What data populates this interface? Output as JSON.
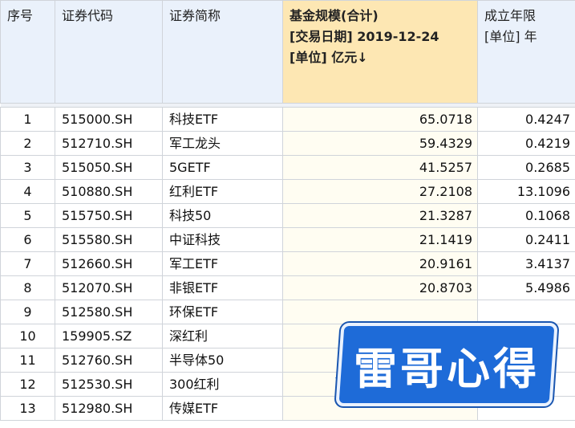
{
  "headers": {
    "idx": "序号",
    "code": "证券代码",
    "name": "证券简称",
    "fund_scale": [
      "基金规模(合计)",
      "[交易日期] 2019-12-24",
      "[单位] 亿元↓"
    ],
    "years": [
      "成立年限",
      "[单位] 年"
    ]
  },
  "rows": [
    {
      "idx": "1",
      "code": "515000.SH",
      "name": "科技ETF",
      "scale": "65.0718",
      "years": "0.4247"
    },
    {
      "idx": "2",
      "code": "512710.SH",
      "name": "军工龙头",
      "scale": "59.4329",
      "years": "0.4219"
    },
    {
      "idx": "3",
      "code": "515050.SH",
      "name": "5GETF",
      "scale": "41.5257",
      "years": "0.2685"
    },
    {
      "idx": "4",
      "code": "510880.SH",
      "name": "红利ETF",
      "scale": "27.2108",
      "years": "13.1096"
    },
    {
      "idx": "5",
      "code": "515750.SH",
      "name": "科技50",
      "scale": "21.3287",
      "years": "0.1068"
    },
    {
      "idx": "6",
      "code": "515580.SH",
      "name": "中证科技",
      "scale": "21.1419",
      "years": "0.2411"
    },
    {
      "idx": "7",
      "code": "512660.SH",
      "name": "军工ETF",
      "scale": "20.9161",
      "years": "3.4137"
    },
    {
      "idx": "8",
      "code": "512070.SH",
      "name": "非银ETF",
      "scale": "20.8703",
      "years": "5.4986"
    },
    {
      "idx": "9",
      "code": "512580.SH",
      "name": "环保ETF",
      "scale": "",
      "years": ""
    },
    {
      "idx": "10",
      "code": "159905.SZ",
      "name": "深红利",
      "scale": "",
      "years": ""
    },
    {
      "idx": "11",
      "code": "512760.SH",
      "name": "半导体50",
      "scale": "",
      "years": ""
    },
    {
      "idx": "12",
      "code": "512530.SH",
      "name": "300红利",
      "scale": "",
      "years": ""
    },
    {
      "idx": "13",
      "code": "512980.SH",
      "name": "传媒ETF",
      "scale": "",
      "years": ""
    }
  ],
  "watermark": "雷哥心得"
}
